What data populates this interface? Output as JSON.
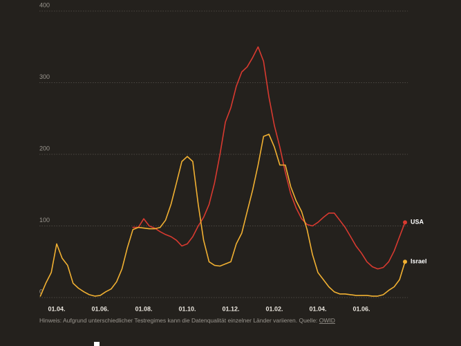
{
  "chart_data": {
    "type": "line",
    "categories": [
      null,
      null,
      null,
      "01.04.",
      null,
      null,
      null,
      null,
      null,
      null,
      null,
      "01.06.",
      null,
      null,
      null,
      null,
      null,
      null,
      null,
      "01.08.",
      null,
      null,
      null,
      null,
      null,
      null,
      null,
      "01.10.",
      null,
      null,
      null,
      null,
      null,
      null,
      null,
      "01.12.",
      null,
      null,
      null,
      null,
      null,
      null,
      null,
      "01.02.",
      null,
      null,
      null,
      null,
      null,
      null,
      null,
      "01.04.",
      null,
      null,
      null,
      null,
      null,
      null,
      null,
      "01.06.",
      null,
      null,
      null,
      null,
      null,
      null,
      null,
      null
    ],
    "series": [
      {
        "name": "USA",
        "color": "#d93a30",
        "values": [
          null,
          null,
          null,
          null,
          null,
          null,
          null,
          null,
          null,
          null,
          null,
          null,
          null,
          null,
          null,
          null,
          null,
          98,
          98,
          110,
          100,
          97,
          92,
          88,
          85,
          80,
          72,
          75,
          85,
          100,
          112,
          130,
          160,
          200,
          245,
          265,
          295,
          315,
          322,
          335,
          350,
          330,
          280,
          240,
          210,
          175,
          145,
          125,
          110,
          102,
          100,
          105,
          112,
          118,
          118,
          108,
          98,
          85,
          72,
          62,
          50,
          43,
          40,
          42,
          50,
          65,
          85,
          105
        ]
      },
      {
        "name": "Israel",
        "color": "#f2b132",
        "values": [
          2,
          20,
          35,
          75,
          55,
          45,
          20,
          13,
          8,
          4,
          2,
          3,
          8,
          12,
          22,
          40,
          70,
          95,
          98,
          97,
          96,
          96,
          98,
          108,
          130,
          160,
          190,
          197,
          190,
          130,
          80,
          50,
          45,
          44,
          47,
          50,
          75,
          90,
          120,
          150,
          185,
          225,
          228,
          210,
          185,
          185,
          155,
          135,
          120,
          95,
          60,
          35,
          25,
          15,
          8,
          5,
          5,
          4,
          3,
          3,
          3,
          2,
          2,
          4,
          10,
          15,
          25,
          50
        ]
      }
    ],
    "ylim": [
      0,
      400
    ],
    "yticks": [
      0,
      100,
      200,
      300,
      400
    ],
    "grid": true,
    "note": "Hinweis: Aufgrund unterschiedlicher Testregimes kann die Datenqualität einzelner Länder variieren. Quelle: ",
    "source": "OWID"
  }
}
